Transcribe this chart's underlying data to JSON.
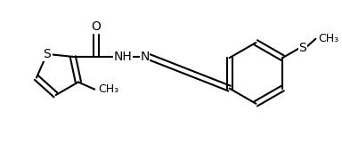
{
  "background_color": "#ffffff",
  "line_color": "#000000",
  "line_width": 1.5,
  "font_size": 10,
  "figsize": [
    3.84,
    1.6
  ],
  "dpi": 100,
  "xlim": [
    0.0,
    7.8
  ],
  "ylim": [
    0.0,
    3.2
  ]
}
